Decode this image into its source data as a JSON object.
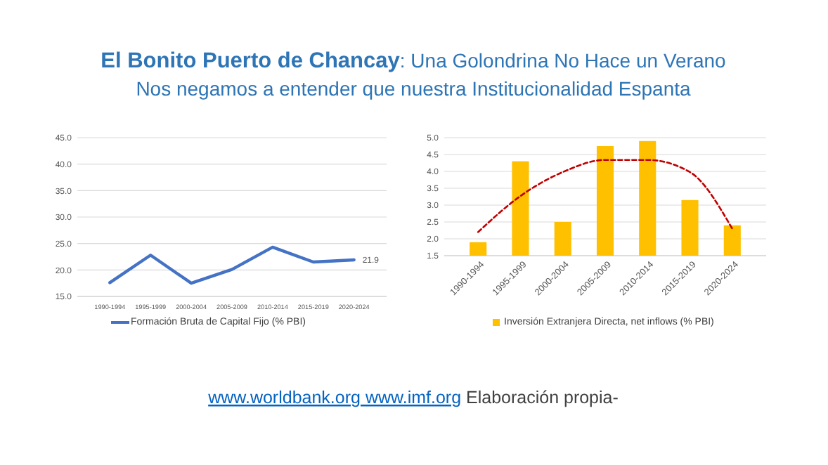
{
  "chart_data": [
    {
      "type": "line",
      "title": "El Bonito Puerto de Chancay: Una Golondrina No Hace un Verano",
      "subtitle": "Nos negamos a entender que nuestra Institucionalidad Espanta",
      "categories": [
        "1990-1994",
        "1995-1999",
        "2000-2004",
        "2005-2009",
        "2010-2014",
        "2015-2019",
        "2020-2024"
      ],
      "series": [
        {
          "name": "Formación Bruta de Capital Fijo (% PBI)",
          "color": "#4472c4",
          "values": [
            17.6,
            22.8,
            17.5,
            20.1,
            24.3,
            21.5,
            21.9
          ],
          "value_labels": [
            null,
            null,
            null,
            null,
            null,
            null,
            "21.9"
          ]
        }
      ],
      "ylim": [
        15,
        45
      ],
      "yticks": [
        {
          "value": 15,
          "label": "15.0"
        },
        {
          "value": 20,
          "label": "20.0"
        },
        {
          "value": 25,
          "label": "25.0"
        },
        {
          "value": 30,
          "label": "30.0"
        },
        {
          "value": 35,
          "label": "35.0"
        },
        {
          "value": 40,
          "label": "40.0"
        },
        {
          "value": 45,
          "label": "45.0"
        }
      ],
      "grid": "y",
      "legend": "bottom"
    },
    {
      "type": "bar",
      "categories": [
        "1990-1994",
        "1995-1999",
        "2000-2004",
        "2005-2009",
        "2010-2014",
        "2015-2019",
        "2020-2024"
      ],
      "series": [
        {
          "name": "Inversión Extranjera Directa, net inflows (% PBI)",
          "color": "#ffc000",
          "values": [
            1.9,
            4.3,
            2.5,
            4.75,
            4.9,
            3.15,
            2.4
          ]
        },
        {
          "type": "line",
          "color": "#c00000",
          "line_style": "dashed",
          "values": [
            2.2,
            3.27,
            3.98,
            4.34,
            4.34,
            3.98,
            2.3
          ]
        }
      ],
      "ylim": [
        1.5,
        5
      ],
      "yticks": [
        {
          "value": 1.5,
          "label": "1.5"
        },
        {
          "value": 2,
          "label": "2.0"
        },
        {
          "value": 2.5,
          "label": "2.5"
        },
        {
          "value": 3,
          "label": "3.0"
        },
        {
          "value": 3.5,
          "label": "3.5"
        },
        {
          "value": 4,
          "label": "4.0"
        },
        {
          "value": 4.5,
          "label": "4.5"
        },
        {
          "value": 5,
          "label": "5.0"
        }
      ],
      "grid": "y",
      "legend": "bottom",
      "annotations": [
        "www.worldbank.org",
        "www.imf.org",
        "Elaboración propia-"
      ]
    }
  ]
}
